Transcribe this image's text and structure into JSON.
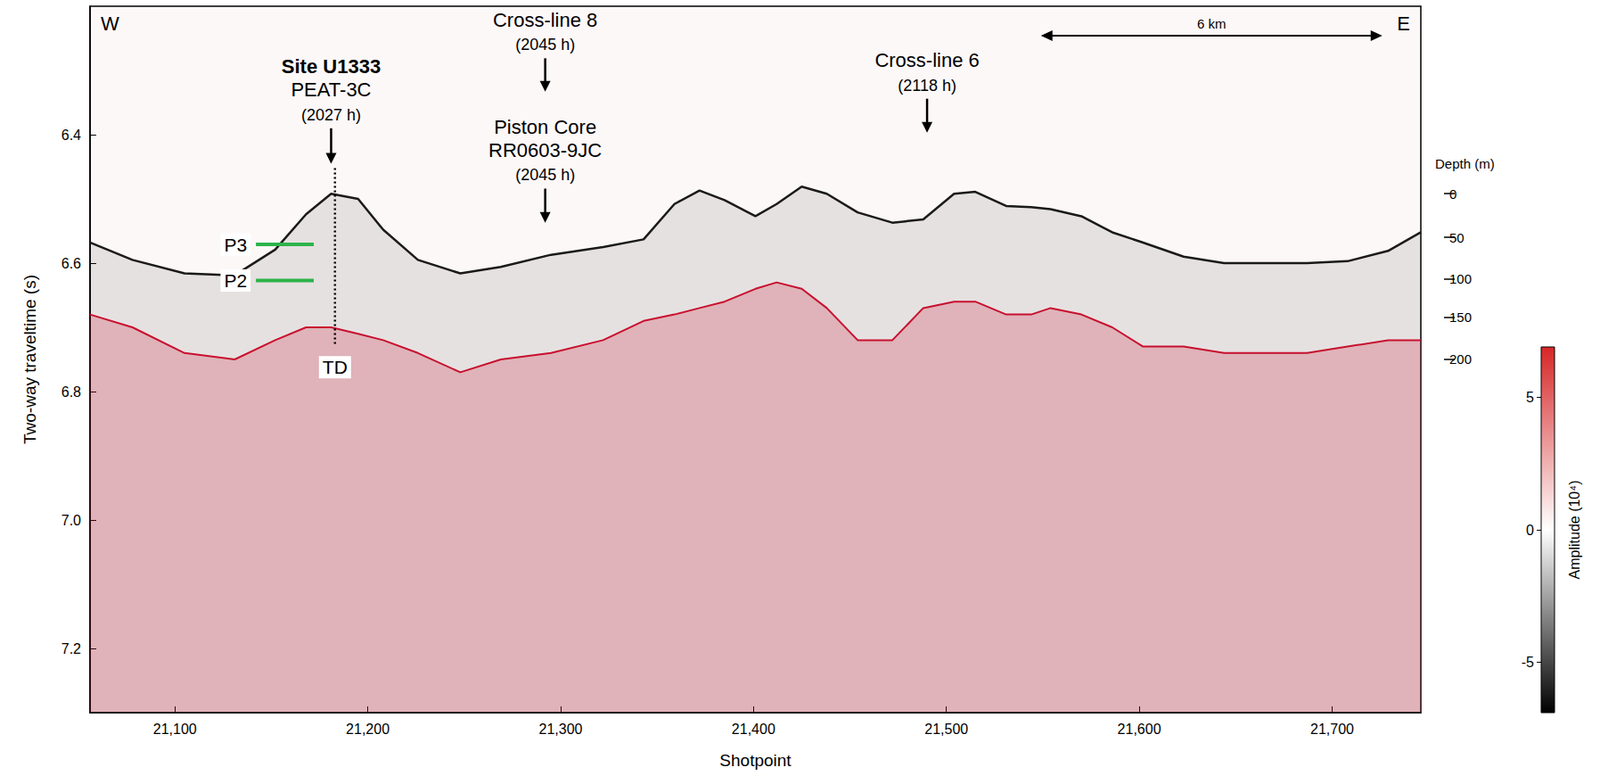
{
  "chart_data": {
    "type": "line",
    "xlabel": "Shotpoint",
    "ylabel": "Two-way traveltime (s)",
    "xlim": [
      21056,
      21746
    ],
    "ylim": [
      6.2,
      7.3
    ],
    "xticks": [
      {
        "value": 21100,
        "label": "21,100"
      },
      {
        "value": 21200,
        "label": "21,200"
      },
      {
        "value": 21300,
        "label": "21,300"
      },
      {
        "value": 21400,
        "label": "21,400"
      },
      {
        "value": 21500,
        "label": "21,500"
      },
      {
        "value": 21600,
        "label": "21,600"
      },
      {
        "value": 21700,
        "label": "21,700"
      }
    ],
    "yticks": [
      6.4,
      6.6,
      6.8,
      {
        "value": 7,
        "label": "7.0"
      },
      7.2
    ],
    "grid": false,
    "x": [
      21056,
      21078,
      21105,
      21131,
      21152,
      21168,
      21181,
      21195,
      21208,
      21226,
      21248,
      21269,
      21295,
      21322,
      21343,
      21359,
      21372,
      21385,
      21401,
      21412,
      21425,
      21438,
      21454,
      21472,
      21488,
      21504,
      21515,
      21531,
      21544,
      21554,
      21570,
      21586,
      21602,
      21623,
      21644,
      21665,
      21687,
      21708,
      21729,
      21746
    ],
    "series": [
      {
        "color": "#1a1a1a",
        "values": [
          6.568,
          6.595,
          6.616,
          6.619,
          6.579,
          6.524,
          6.492,
          6.5,
          6.548,
          6.595,
          6.616,
          6.606,
          6.587,
          6.575,
          6.563,
          6.508,
          6.487,
          6.502,
          6.527,
          6.508,
          6.481,
          6.492,
          6.521,
          6.537,
          6.532,
          6.492,
          6.489,
          6.511,
          6.513,
          6.516,
          6.527,
          6.552,
          6.568,
          6.59,
          6.6,
          6.6,
          6.6,
          6.597,
          6.581,
          6.552
        ]
      },
      {
        "color": "#c8102e",
        "values": [
          6.68,
          6.7,
          6.74,
          6.75,
          6.72,
          6.7,
          6.7,
          6.71,
          6.72,
          6.74,
          6.77,
          6.75,
          6.74,
          6.72,
          6.69,
          6.68,
          6.67,
          6.66,
          6.64,
          6.63,
          6.64,
          6.67,
          6.72,
          6.72,
          6.67,
          6.66,
          6.66,
          6.68,
          6.68,
          6.67,
          6.68,
          6.7,
          6.73,
          6.73,
          6.74,
          6.74,
          6.74,
          6.73,
          6.72,
          6.72
        ]
      }
    ],
    "annotations": [
      {
        "lines": [
          "Site U1333",
          "PEAT-3C",
          "(2027 h)"
        ],
        "x": 21181,
        "arrow": [
          6.39,
          6.445
        ]
      },
      {
        "lines": [
          "Cross-line 8",
          "(2045 h)"
        ],
        "x": 21292,
        "arrow": [
          6.281,
          6.333
        ]
      },
      {
        "lines": [
          "Piston Core",
          "RR0603-9JC",
          "(2045 h)"
        ],
        "x": 21292,
        "arrow": [
          6.484,
          6.537
        ]
      },
      {
        "lines": [
          "Cross-line 6",
          "(2118 h)"
        ],
        "x": 21490,
        "arrow": [
          6.344,
          6.397
        ]
      }
    ],
    "drill_hole": {
      "x": 21183,
      "y": [
        6.452,
        6.73
      ],
      "label": "TD",
      "label_y": 6.762
    },
    "markers": [
      {
        "label": "P3",
        "x": [
          21142,
          21172
        ],
        "y": 6.571,
        "color": "#2db34a"
      },
      {
        "label": "P2",
        "x": [
          21142,
          21172
        ],
        "y": 6.627,
        "color": "#2db34a"
      }
    ],
    "directions": {
      "left": "W",
      "right": "E"
    },
    "scale_bar": {
      "label": "6 km",
      "x": [
        21549,
        21726
      ],
      "y": 6.246
    },
    "depth_scale": {
      "title": "Depth (m)",
      "ticks": [
        {
          "depth": 0,
          "twt": 6.492
        },
        {
          "depth": 50,
          "twt": 6.56
        },
        {
          "depth": 100,
          "twt": 6.624
        },
        {
          "depth": 150,
          "twt": 6.684
        },
        {
          "depth": 200,
          "twt": 6.749
        }
      ]
    },
    "colorbar": {
      "title": "Amplitude (10⁴)",
      "range": [
        -6.9,
        6.9
      ],
      "ticks": [
        -5,
        0,
        5
      ],
      "colors": [
        "#000000",
        "#ffffff",
        "#d62728"
      ]
    }
  }
}
